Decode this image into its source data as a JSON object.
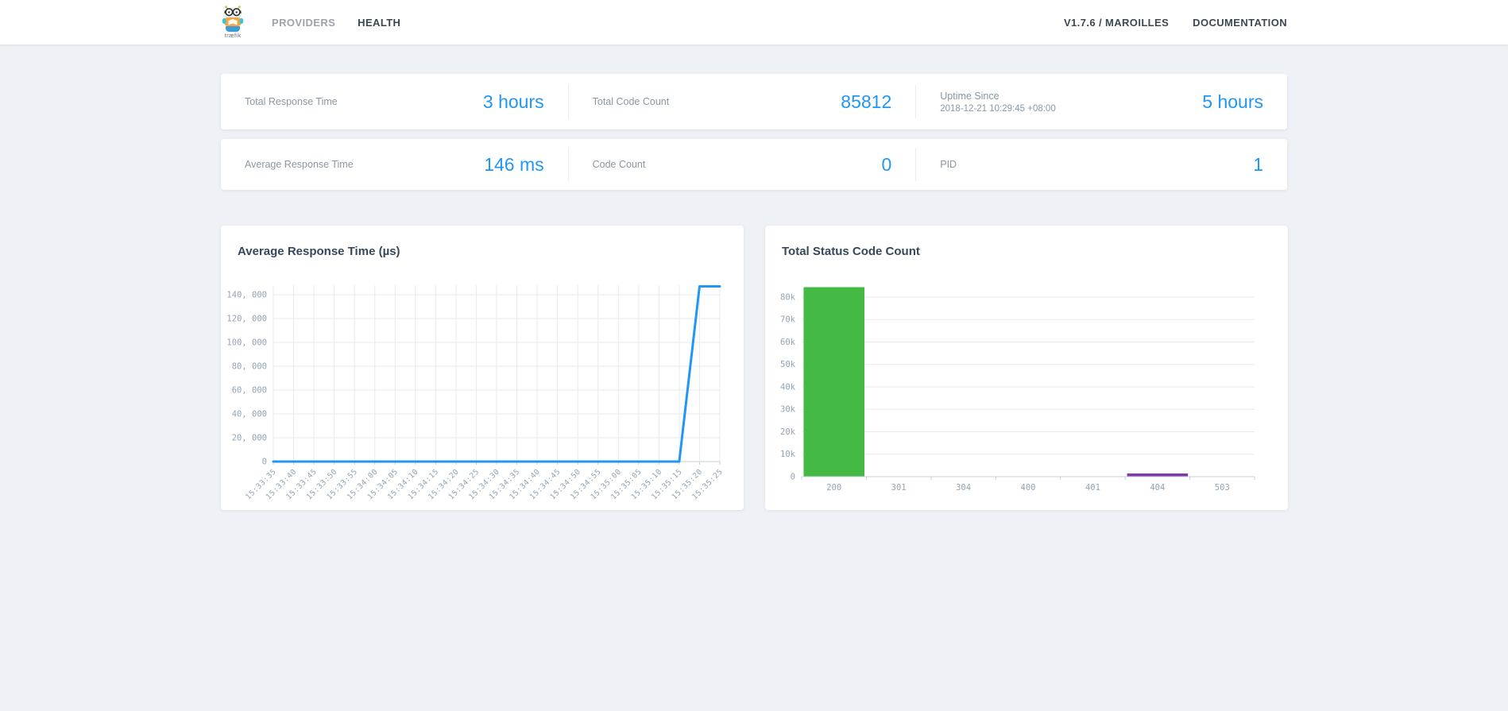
{
  "navbar": {
    "logo_caption": "træfik",
    "items": [
      {
        "label": "PROVIDERS",
        "active": false
      },
      {
        "label": "HEALTH",
        "active": true
      }
    ],
    "right_items": [
      "V1.7.6 / MAROILLES",
      "DOCUMENTATION"
    ]
  },
  "stats": {
    "rows": [
      [
        {
          "label": "Total Response Time",
          "value": "3 hours"
        },
        {
          "label": "Total Code Count",
          "value": "85812"
        },
        {
          "label": "Uptime Since",
          "sublabel": "2018-12-21 10:29:45 +08:00",
          "value": "5 hours"
        }
      ],
      [
        {
          "label": "Average Response Time",
          "value": "146 ms"
        },
        {
          "label": "Code Count",
          "value": "0"
        },
        {
          "label": "PID",
          "value": "1"
        }
      ]
    ]
  },
  "chart_data": [
    {
      "type": "line",
      "title": "Average Response Time (µs)",
      "x": [
        "15:33:35",
        "15:33:40",
        "15:33:45",
        "15:33:50",
        "15:33:55",
        "15:34:00",
        "15:34:05",
        "15:34:10",
        "15:34:15",
        "15:34:20",
        "15:34:25",
        "15:34:30",
        "15:34:35",
        "15:34:40",
        "15:34:45",
        "15:34:50",
        "15:34:55",
        "15:35:00",
        "15:35:05",
        "15:35:10",
        "15:35:15",
        "15:35:20",
        "15:35:25"
      ],
      "values": [
        0,
        0,
        0,
        0,
        0,
        0,
        0,
        0,
        0,
        0,
        0,
        0,
        0,
        0,
        0,
        0,
        0,
        0,
        0,
        0,
        0,
        147000,
        147000
      ],
      "ylim": [
        0,
        148000
      ],
      "y_tick_values": [
        0,
        20000,
        40000,
        60000,
        80000,
        100000,
        120000,
        140000
      ],
      "y_tick_labels": [
        "0",
        "20, 000",
        "40, 000",
        "60, 000",
        "80, 000",
        "100, 000",
        "120, 000",
        "140, 000"
      ],
      "line_color": "#2196f3",
      "grid": "both",
      "legend": "none"
    },
    {
      "type": "bar",
      "title": "Total Status Code Count",
      "categories": [
        "200",
        "301",
        "304",
        "400",
        "401",
        "404",
        "503"
      ],
      "values": [
        84412,
        0,
        0,
        0,
        0,
        1400,
        0
      ],
      "ylim": [
        0,
        86000
      ],
      "y_tick_values": [
        0,
        10000,
        20000,
        30000,
        40000,
        50000,
        60000,
        70000,
        80000
      ],
      "y_tick_labels": [
        "0",
        "10k",
        "20k",
        "30k",
        "40k",
        "50k",
        "60k",
        "70k",
        "80k"
      ],
      "bar_colors": {
        "200": "#44b944",
        "404": "#7b3aa5"
      },
      "grid": "horizontal",
      "legend": "none"
    }
  ],
  "theme": {
    "accent_blue": "#2196f3",
    "green": "#44b944",
    "purple": "#7b3aa5",
    "grid_color": "#e6ebef",
    "axis_color": "#c6d0d9",
    "tick_text_color": "#93a3b3"
  }
}
